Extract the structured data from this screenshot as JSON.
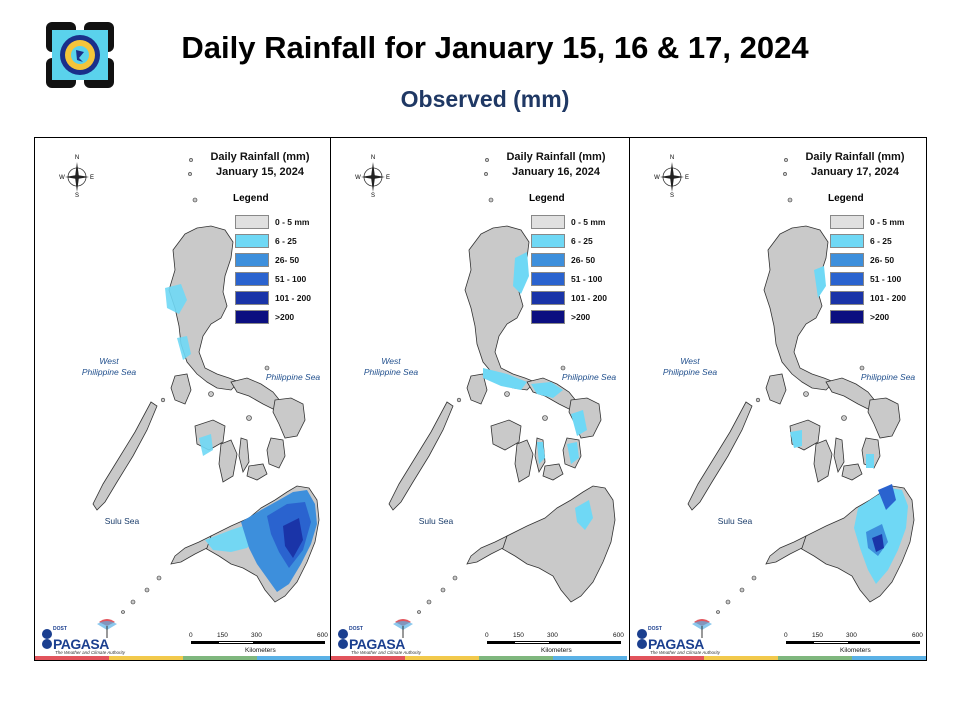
{
  "header": {
    "title": "Daily Rainfall for January 15, 16 & 17, 2024",
    "subtitle": "Observed (mm)"
  },
  "legend": {
    "title": "Legend",
    "classes": [
      {
        "label": "0 - 5 mm",
        "color": "#e0e0e0"
      },
      {
        "label": "6 - 25",
        "color": "#6fd8f5"
      },
      {
        "label": "26- 50",
        "color": "#3d8fdc"
      },
      {
        "label": "51 - 100",
        "color": "#2a63cf"
      },
      {
        "label": "101 - 200",
        "color": "#1a34a8"
      },
      {
        "label": ">200",
        "color": "#0b0f80"
      }
    ]
  },
  "maps": [
    {
      "heading": "Daily Rainfall (mm)",
      "date": "January 15, 2024"
    },
    {
      "heading": "Daily Rainfall (mm)",
      "date": "January 16, 2024"
    },
    {
      "heading": "Daily Rainfall (mm)",
      "date": "January 17, 2024"
    }
  ],
  "seas": {
    "west": "West\nPhilippine Sea",
    "east": "Philippine Sea",
    "sulu": "Sulu Sea"
  },
  "compass": {
    "n": "N",
    "s": "S",
    "e": "E",
    "w": "W"
  },
  "scale": {
    "ticks": [
      "0",
      "150",
      "300",
      "600"
    ],
    "unit": "Kilometers"
  },
  "branding": {
    "name": "PAGASA",
    "agency": "DOST",
    "tagline": "The Weather and Climate Authority"
  },
  "colors": {
    "land": "#c9c9c9",
    "strip": [
      "#e2545c",
      "#f2c94c",
      "#7fb77e",
      "#5ab1e6"
    ]
  }
}
